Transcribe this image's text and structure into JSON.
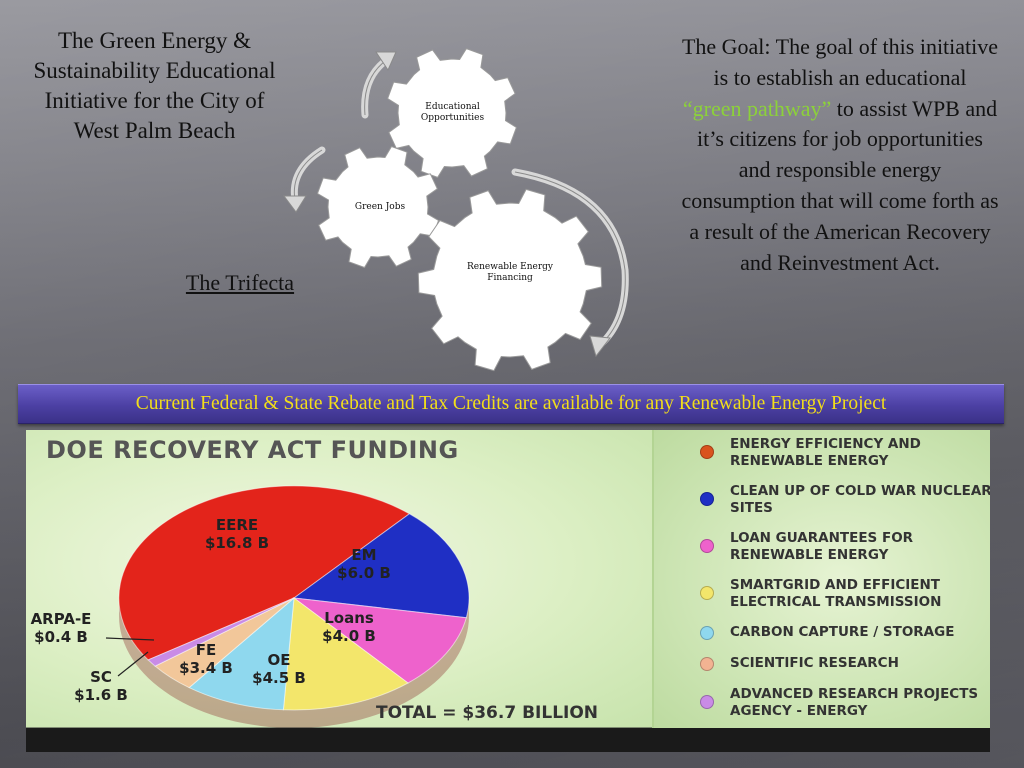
{
  "title": "The Green Energy & Sustainability Educational Initiative for the City of West Palm Beach",
  "subtitle": "The Trifecta",
  "gears": [
    {
      "label": "Educational Opportunities"
    },
    {
      "label": "Green Jobs"
    },
    {
      "label": "Renewable Energy Financing"
    }
  ],
  "goal": {
    "lead": "The Goal:",
    "text1": "The goal of this initiative is to establish an educational",
    "highlight": "“green pathway”",
    "text2": "to assist WPB and it’s citizens for job opportunities and responsible energy consumption that will come forth as a result of the American Recovery and Reinvestment Act."
  },
  "banner": "Current Federal & State Rebate and Tax Credits are available for any Renewable Energy Project",
  "chart_data": {
    "type": "pie",
    "title": "DOE RECOVERY ACT FUNDING",
    "unit": "B",
    "slices": [
      {
        "code": "EERE",
        "value_label": "$16.8 B",
        "value": 16.8,
        "color": "#e3241b"
      },
      {
        "code": "EM",
        "value_label": "$6.0 B",
        "value": 6.0,
        "color": "#1f2fc4"
      },
      {
        "code": "Loans",
        "value_label": "$4.0 B",
        "value": 4.0,
        "color": "#ee62cc"
      },
      {
        "code": "OE",
        "value_label": "$4.5 B",
        "value": 4.5,
        "color": "#f3e66b"
      },
      {
        "code": "FE",
        "value_label": "$3.4 B",
        "value": 3.4,
        "color": "#8fd8ee"
      },
      {
        "code": "SC",
        "value_label": "$1.6 B",
        "value": 1.6,
        "color": "#f2c79a"
      },
      {
        "code": "ARPA-E",
        "value_label": "$0.4 B",
        "value": 0.4,
        "color": "#c98be6"
      }
    ],
    "legend": [
      {
        "text": "ENERGY EFFICIENCY AND RENEWABLE ENERGY",
        "color": "#d9531e"
      },
      {
        "text": "CLEAN UP OF COLD WAR NUCLEAR SITES",
        "color": "#1f2fc4"
      },
      {
        "text": "LOAN GUARANTEES FOR RENEWABLE ENERGY",
        "color": "#ee62cc"
      },
      {
        "text": "SMARTGRID AND EFFICIENT ELECTRICAL TRANSMISSION",
        "color": "#f3e66b"
      },
      {
        "text": "CARBON CAPTURE / STORAGE",
        "color": "#8fd8ee"
      },
      {
        "text": "SCIENTIFIC RESEARCH",
        "color": "#f2b392"
      },
      {
        "text": "ADVANCED RESEARCH PROJECTS AGENCY - ENERGY",
        "color": "#c98be6"
      }
    ],
    "total": "TOTAL = $36.7 BILLION"
  }
}
